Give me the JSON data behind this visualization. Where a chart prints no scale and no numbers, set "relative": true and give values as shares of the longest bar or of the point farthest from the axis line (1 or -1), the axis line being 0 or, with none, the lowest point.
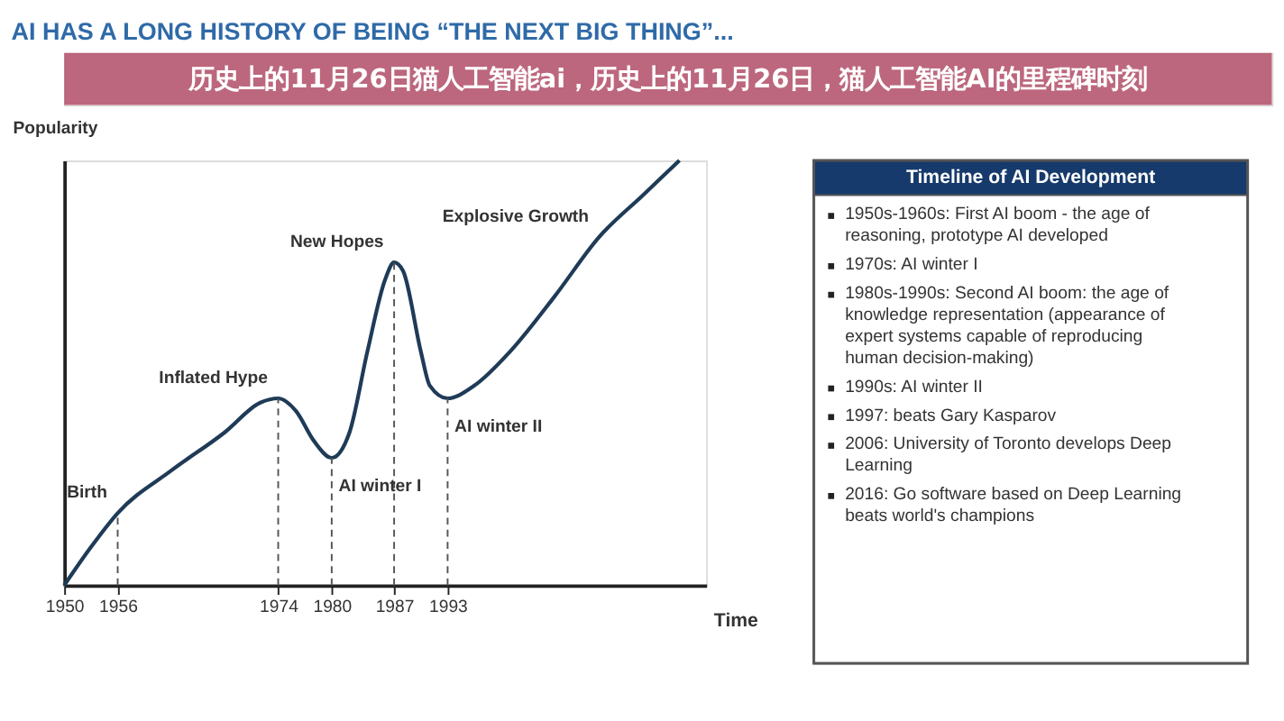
{
  "chart_data": [
    {
      "type": "line",
      "title": "AI HAS A LONG HISTORY OF BEING “THE NEXT BIG THING”...",
      "subtitle": "历史上的11月26日猫人工智能ai，历史上的11月26日，猫人工智能AI的里程碑时刻",
      "xlabel": "Time",
      "ylabel": "Popularity",
      "relative": true,
      "x": [
        1950,
        1953,
        1956,
        1962,
        1968,
        1972,
        1974,
        1976,
        1978,
        1980,
        1982,
        1984,
        1986,
        1987,
        1988,
        1990,
        1991,
        1993,
        1996,
        2000,
        2005,
        2010,
        2015,
        2019
      ],
      "series": [
        {
          "color": "#1f3b57",
          "values": [
            0,
            0.09,
            0.17,
            0.27,
            0.36,
            0.43,
            0.44,
            0.41,
            0.34,
            0.3,
            0.36,
            0.55,
            0.72,
            0.76,
            0.74,
            0.55,
            0.47,
            0.44,
            0.47,
            0.55,
            0.68,
            0.82,
            0.92,
            1.0
          ]
        }
      ],
      "xlim": [
        1950,
        2022
      ],
      "xticks": [
        1950,
        1956,
        1974,
        1980,
        1987,
        1993
      ],
      "grid": false,
      "line_style": "solid",
      "ref_lines": [
        {
          "axis": "x",
          "value": 1956,
          "line_style": "dashed"
        },
        {
          "axis": "x",
          "value": 1974,
          "line_style": "dashed"
        },
        {
          "axis": "x",
          "value": 1980,
          "line_style": "dashed"
        },
        {
          "axis": "x",
          "value": 1987,
          "line_style": "dashed"
        },
        {
          "axis": "x",
          "value": 1993,
          "line_style": "dashed"
        }
      ],
      "annotations": [
        {
          "text": "Birth",
          "x": 1956,
          "y": 0.17
        },
        {
          "text": "Inflated Hype",
          "x": 1974,
          "y": 0.44
        },
        {
          "text": "AI winter I",
          "x": 1980,
          "y": 0.3
        },
        {
          "text": "New Hopes",
          "x": 1987,
          "y": 0.76
        },
        {
          "text": "AI winter II",
          "x": 1993,
          "y": 0.44
        },
        {
          "text": "Explosive Growth",
          "x": 2010,
          "y": 0.82
        }
      ]
    },
    {
      "type": "other",
      "title": "Timeline of AI Development",
      "annotations": [
        "1950s-1960s: First AI boom - the age of reasoning, prototype AI developed",
        "1970s: AI winter I",
        "1980s-1990s: Second AI boom: the age of knowledge representation (appearance of expert systems capable of reproducing human decision-making)",
        "1990s: AI winter II",
        "1997: beats Gary Kasparov",
        "2006: University of Toronto develops Deep Learning",
        "2016: Go software based on Deep Learning beats world's champions"
      ]
    }
  ]
}
